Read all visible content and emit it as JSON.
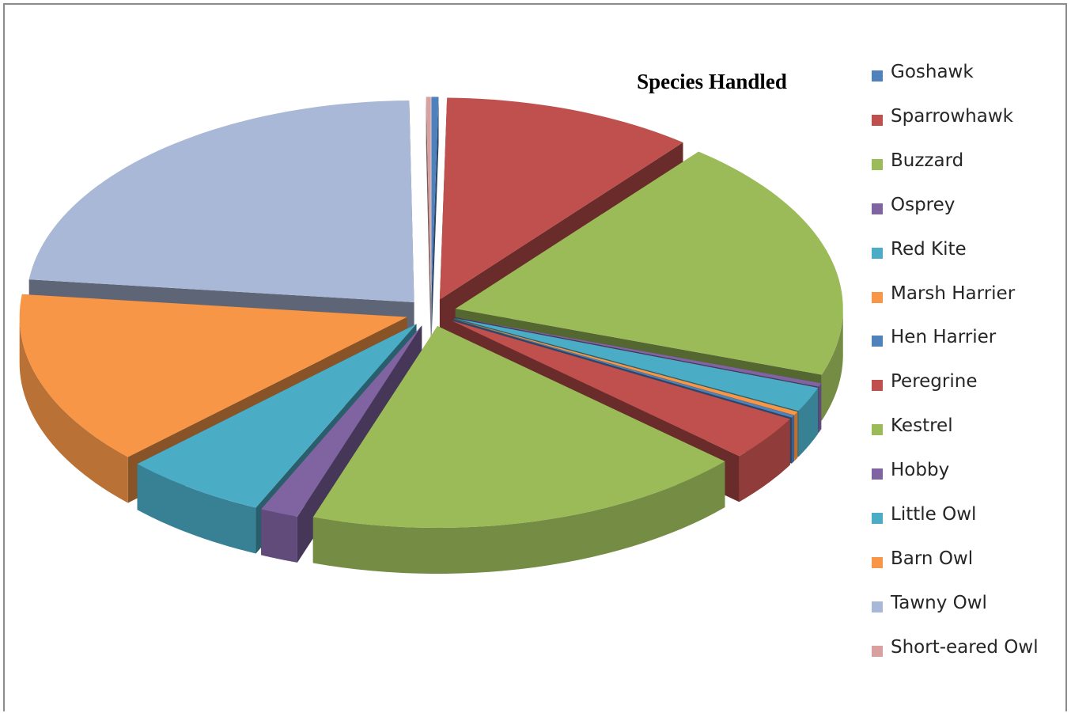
{
  "chart_data": {
    "type": "pie",
    "title": "Species Handled",
    "legend_position": "right",
    "categories": [
      "Goshawk",
      "Sparrowhawk",
      "Buzzard",
      "Osprey",
      "Red Kite",
      "Marsh Harrier",
      "Hen Harrier",
      "Peregrine",
      "Kestrel",
      "Hobby",
      "Little Owl",
      "Barn Owl",
      "Tawny Owl",
      "Short-eared Owl"
    ],
    "values": [
      0.3,
      10.5,
      19.5,
      0.3,
      2.0,
      0.3,
      0.2,
      3.6,
      18.5,
      1.6,
      6.0,
      14.0,
      23.0,
      0.2
    ],
    "colors": [
      "#4f81bd",
      "#c0504d",
      "#9bbb59",
      "#8064a2",
      "#4bacc6",
      "#f79646",
      "#4f81bd",
      "#c0504d",
      "#9bbb59",
      "#8064a2",
      "#4bacc6",
      "#f79646",
      "#a9b8d6",
      "#d9a0a0"
    ]
  }
}
